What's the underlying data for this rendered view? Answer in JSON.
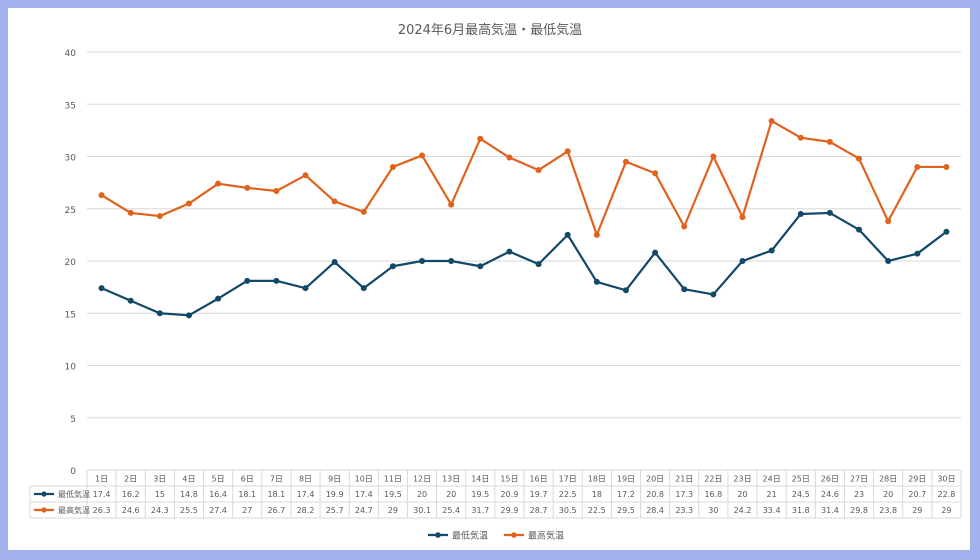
{
  "chart_data": {
    "type": "line",
    "title": "2024年6月最高気温・最低気温",
    "ylim": [
      0,
      40
    ],
    "y_ticks": [
      0,
      5,
      10,
      15,
      20,
      25,
      30,
      35,
      40
    ],
    "grid": true,
    "legend_position": "bottom",
    "data_table": true,
    "categories": [
      "1日",
      "2日",
      "3日",
      "4日",
      "5日",
      "6日",
      "7日",
      "8日",
      "9日",
      "10日",
      "11日",
      "12日",
      "13日",
      "14日",
      "15日",
      "16日",
      "17日",
      "18日",
      "19日",
      "20日",
      "21日",
      "22日",
      "23日",
      "24日",
      "25日",
      "26日",
      "27日",
      "28日",
      "29日",
      "30日"
    ],
    "series": [
      {
        "name": "最低気温",
        "color": "#124868",
        "values": [
          17.4,
          16.2,
          15,
          14.8,
          16.4,
          18.1,
          18.1,
          17.4,
          19.9,
          17.4,
          19.5,
          20,
          20,
          19.5,
          20.9,
          19.7,
          22.5,
          18,
          17.2,
          20.8,
          17.3,
          16.8,
          20,
          21,
          24.5,
          24.6,
          23,
          20,
          20.7,
          22.8
        ]
      },
      {
        "name": "最高気温",
        "color": "#e0621d",
        "values": [
          26.3,
          24.6,
          24.3,
          25.5,
          27.4,
          27,
          26.7,
          28.2,
          25.7,
          24.7,
          29,
          30.1,
          25.4,
          31.7,
          29.9,
          28.7,
          30.5,
          22.5,
          29.5,
          28.4,
          23.3,
          30,
          24.2,
          33.4,
          31.8,
          31.4,
          29.8,
          23.8,
          29,
          29
        ]
      }
    ]
  }
}
